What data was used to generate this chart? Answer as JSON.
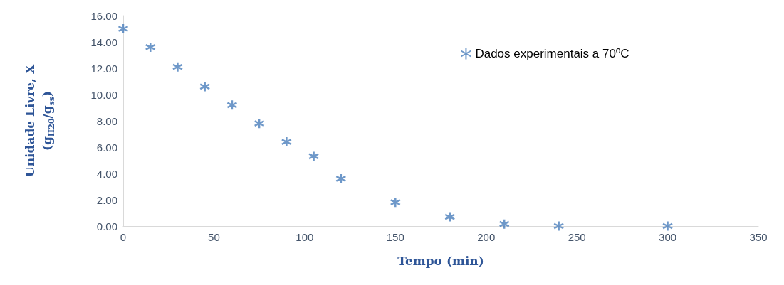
{
  "chart_data": {
    "type": "scatter",
    "xlabel": "Tempo (min)",
    "ylabel": "Unidade Livre, X\n(g$_{H20}$/g$_{ss}$)",
    "x": [
      0,
      15,
      30,
      45,
      60,
      75,
      90,
      105,
      120,
      150,
      180,
      210,
      240,
      300
    ],
    "series": [
      {
        "name": "Dados experimentais a 70ºC",
        "color": "#4a7ebb",
        "values": [
          15.0,
          13.6,
          12.1,
          10.6,
          9.2,
          7.8,
          6.4,
          5.3,
          3.6,
          1.8,
          0.7,
          0.15,
          0.0,
          0.0
        ]
      }
    ],
    "xlim": [
      0,
      350
    ],
    "xticks": [
      0,
      50,
      100,
      150,
      200,
      250,
      300,
      350
    ],
    "ylim": [
      0,
      16
    ],
    "yticks": [
      {
        "value": 0,
        "label": "0.00"
      },
      {
        "value": 2,
        "label": "2.00"
      },
      {
        "value": 4,
        "label": "4.00"
      },
      {
        "value": 6,
        "label": "6.00"
      },
      {
        "value": 8,
        "label": "8.00"
      },
      {
        "value": 10,
        "label": "10.00"
      },
      {
        "value": 12,
        "label": "12.00"
      },
      {
        "value": 14,
        "label": "14.00"
      },
      {
        "value": 16,
        "label": "16.00"
      }
    ],
    "marker": "cross",
    "grid": false,
    "legend": "top right"
  }
}
